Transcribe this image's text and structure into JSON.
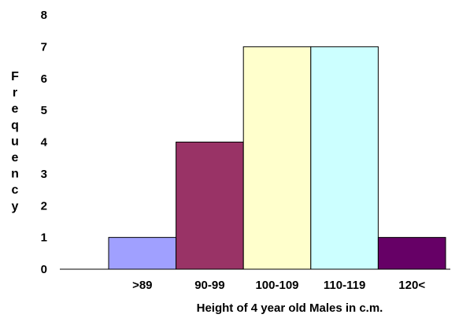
{
  "chart_data": {
    "type": "bar",
    "xlabel": "Height of 4 year old Males in c.m.",
    "ylabel": "Frequency",
    "categories": [
      ">89",
      "90-99",
      "100-109",
      "110-119",
      "120<"
    ],
    "values": [
      1,
      4,
      7,
      7,
      1
    ],
    "colors": [
      "#a0a0ff",
      "#993366",
      "#ffffcc",
      "#ccffff",
      "#660066"
    ],
    "ylim": [
      0,
      8
    ],
    "yticks": [
      0,
      1,
      2,
      3,
      4,
      5,
      6,
      7,
      8
    ],
    "grid": false,
    "bar_gap": "none",
    "legend": "none"
  }
}
